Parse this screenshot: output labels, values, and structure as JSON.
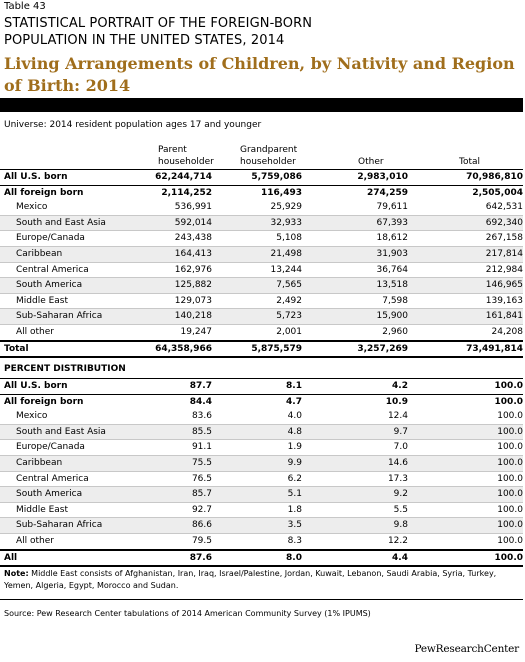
{
  "header": {
    "table_number": "Table 43",
    "super_title_line1": "STATISTICAL PORTRAIT OF THE FOREIGN-BORN",
    "super_title_line2": "POPULATION IN THE UNITED STATES, 2014",
    "title": "Living Arrangements of Children, by Nativity and Region of Birth: 2014"
  },
  "universe": "Universe: 2014 resident population ages 17 and younger",
  "columns": {
    "parent_line1": "Parent",
    "parent_line2": "householder",
    "grand_line1": "Grandparent",
    "grand_line2": "householder",
    "other": "Other",
    "total": "Total"
  },
  "counts": [
    {
      "label": "All U.S. born",
      "parent": "62,244,714",
      "grand": "5,759,086",
      "other": "2,983,010",
      "total": "70,986,810"
    },
    {
      "label": "All foreign born",
      "parent": "2,114,252",
      "grand": "116,493",
      "other": "274,259",
      "total": "2,505,004"
    },
    {
      "label": "Mexico",
      "parent": "536,991",
      "grand": "25,929",
      "other": "79,611",
      "total": "642,531"
    },
    {
      "label": "South and East Asia",
      "parent": "592,014",
      "grand": "32,933",
      "other": "67,393",
      "total": "692,340"
    },
    {
      "label": "Europe/Canada",
      "parent": "243,438",
      "grand": "5,108",
      "other": "18,612",
      "total": "267,158"
    },
    {
      "label": "Caribbean",
      "parent": "164,413",
      "grand": "21,498",
      "other": "31,903",
      "total": "217,814"
    },
    {
      "label": "Central America",
      "parent": "162,976",
      "grand": "13,244",
      "other": "36,764",
      "total": "212,984"
    },
    {
      "label": "South America",
      "parent": "125,882",
      "grand": "7,565",
      "other": "13,518",
      "total": "146,965"
    },
    {
      "label": "Middle East",
      "parent": "129,073",
      "grand": "2,492",
      "other": "7,598",
      "total": "139,163"
    },
    {
      "label": "Sub-Saharan Africa",
      "parent": "140,218",
      "grand": "5,723",
      "other": "15,900",
      "total": "161,841"
    },
    {
      "label": "All other",
      "parent": "19,247",
      "grand": "2,001",
      "other": "2,960",
      "total": "24,208"
    },
    {
      "label": "Total",
      "parent": "64,358,966",
      "grand": "5,875,579",
      "other": "3,257,269",
      "total": "73,491,814"
    }
  ],
  "percent_heading": "PERCENT DISTRIBUTION",
  "percents": [
    {
      "label": "All U.S. born",
      "parent": "87.7",
      "grand": "8.1",
      "other": "4.2",
      "total": "100.0"
    },
    {
      "label": "All foreign born",
      "parent": "84.4",
      "grand": "4.7",
      "other": "10.9",
      "total": "100.0"
    },
    {
      "label": "Mexico",
      "parent": "83.6",
      "grand": "4.0",
      "other": "12.4",
      "total": "100.0"
    },
    {
      "label": "South and East Asia",
      "parent": "85.5",
      "grand": "4.8",
      "other": "9.7",
      "total": "100.0"
    },
    {
      "label": "Europe/Canada",
      "parent": "91.1",
      "grand": "1.9",
      "other": "7.0",
      "total": "100.0"
    },
    {
      "label": "Caribbean",
      "parent": "75.5",
      "grand": "9.9",
      "other": "14.6",
      "total": "100.0"
    },
    {
      "label": "Central America",
      "parent": "76.5",
      "grand": "6.2",
      "other": "17.3",
      "total": "100.0"
    },
    {
      "label": "South America",
      "parent": "85.7",
      "grand": "5.1",
      "other": "9.2",
      "total": "100.0"
    },
    {
      "label": "Middle East",
      "parent": "92.7",
      "grand": "1.8",
      "other": "5.5",
      "total": "100.0"
    },
    {
      "label": "Sub-Saharan Africa",
      "parent": "86.6",
      "grand": "3.5",
      "other": "9.8",
      "total": "100.0"
    },
    {
      "label": "All other",
      "parent": "79.5",
      "grand": "8.3",
      "other": "12.2",
      "total": "100.0"
    },
    {
      "label": "All",
      "parent": "87.6",
      "grand": "8.0",
      "other": "4.4",
      "total": "100.0"
    }
  ],
  "note_label": "Note:",
  "note_text": " Middle East consists of Afghanistan, Iran, Iraq, Israel/Palestine, Jordan, Kuwait, Lebanon, Saudi Arabia, Syria, Turkey, Yemen, Algeria, Egypt, Morocco and Sudan.",
  "source": "Source: Pew Research Center tabulations of 2014 American Community Survey (1% IPUMS)",
  "brand": "PewResearchCenter"
}
